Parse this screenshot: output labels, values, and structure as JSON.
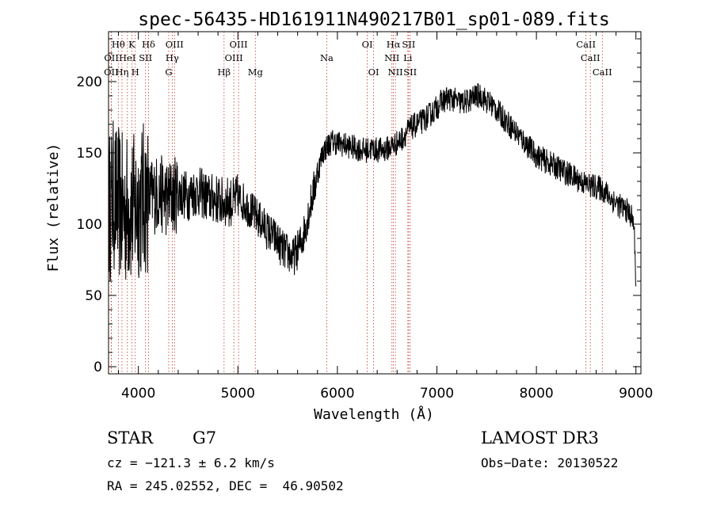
{
  "chart_data": {
    "type": "line",
    "title": "spec-56435-HD161911N490217B01_sp01-089.fits",
    "xlabel": "Wavelength (Å)",
    "ylabel": "Flux (relative)",
    "xlim": [
      3700,
      9050
    ],
    "ylim": [
      -5,
      235
    ],
    "xticks": [
      4000,
      5000,
      6000,
      7000,
      8000,
      9000
    ],
    "yticks": [
      0,
      50,
      100,
      150,
      200
    ],
    "xtick_labels": [
      "4000",
      "5000",
      "6000",
      "7000",
      "8000",
      "9000"
    ],
    "ytick_labels": [
      "0",
      "50",
      "100",
      "150",
      "200"
    ],
    "spectrum_points": [
      [
        3700,
        110
      ],
      [
        3750,
        120
      ],
      [
        3800,
        115
      ],
      [
        3850,
        108
      ],
      [
        3900,
        112
      ],
      [
        3950,
        110
      ],
      [
        4000,
        115
      ],
      [
        4050,
        118
      ],
      [
        4100,
        118
      ],
      [
        4150,
        120
      ],
      [
        4200,
        122
      ],
      [
        4250,
        120
      ],
      [
        4300,
        118
      ],
      [
        4350,
        120
      ],
      [
        4400,
        122
      ],
      [
        4450,
        121
      ],
      [
        4500,
        120
      ],
      [
        4550,
        122
      ],
      [
        4600,
        123
      ],
      [
        4650,
        121
      ],
      [
        4700,
        118
      ],
      [
        4750,
        118
      ],
      [
        4800,
        117
      ],
      [
        4850,
        115
      ],
      [
        4900,
        116
      ],
      [
        4950,
        115
      ],
      [
        5000,
        118
      ],
      [
        5050,
        116
      ],
      [
        5100,
        112
      ],
      [
        5150,
        108
      ],
      [
        5200,
        104
      ],
      [
        5250,
        100
      ],
      [
        5300,
        95
      ],
      [
        5350,
        92
      ],
      [
        5400,
        88
      ],
      [
        5450,
        82
      ],
      [
        5500,
        80
      ],
      [
        5550,
        76
      ],
      [
        5600,
        82
      ],
      [
        5650,
        90
      ],
      [
        5700,
        105
      ],
      [
        5750,
        120
      ],
      [
        5800,
        135
      ],
      [
        5850,
        150
      ],
      [
        5900,
        155
      ],
      [
        5950,
        158
      ],
      [
        6000,
        157
      ],
      [
        6050,
        156
      ],
      [
        6100,
        155
      ],
      [
        6150,
        154
      ],
      [
        6200,
        153
      ],
      [
        6250,
        152
      ],
      [
        6300,
        152
      ],
      [
        6350,
        153
      ],
      [
        6400,
        152
      ],
      [
        6450,
        152
      ],
      [
        6500,
        153
      ],
      [
        6550,
        155
      ],
      [
        6600,
        157
      ],
      [
        6650,
        160
      ],
      [
        6700,
        165
      ],
      [
        6750,
        168
      ],
      [
        6800,
        170
      ],
      [
        6850,
        172
      ],
      [
        6900,
        175
      ],
      [
        6950,
        178
      ],
      [
        7000,
        182
      ],
      [
        7050,
        186
      ],
      [
        7100,
        188
      ],
      [
        7150,
        188
      ],
      [
        7200,
        186
      ],
      [
        7250,
        185
      ],
      [
        7300,
        186
      ],
      [
        7350,
        188
      ],
      [
        7400,
        190
      ],
      [
        7450,
        190
      ],
      [
        7500,
        186
      ],
      [
        7550,
        184
      ],
      [
        7600,
        180
      ],
      [
        7650,
        176
      ],
      [
        7700,
        172
      ],
      [
        7750,
        168
      ],
      [
        7800,
        164
      ],
      [
        7850,
        160
      ],
      [
        7900,
        156
      ],
      [
        7950,
        152
      ],
      [
        8000,
        148
      ],
      [
        8050,
        146
      ],
      [
        8100,
        144
      ],
      [
        8150,
        142
      ],
      [
        8200,
        140
      ],
      [
        8250,
        138
      ],
      [
        8300,
        136
      ],
      [
        8350,
        134
      ],
      [
        8400,
        132
      ],
      [
        8450,
        130
      ],
      [
        8500,
        128
      ],
      [
        8550,
        127
      ],
      [
        8600,
        126
      ],
      [
        8650,
        125
      ],
      [
        8700,
        122
      ],
      [
        8750,
        118
      ],
      [
        8800,
        115
      ],
      [
        8850,
        112
      ],
      [
        8900,
        110
      ],
      [
        8950,
        106
      ],
      [
        8980,
        100
      ],
      [
        9000,
        60
      ]
    ],
    "lines": [
      {
        "label": "OII",
        "wave": 3727,
        "row": 2
      },
      {
        "label": "OII",
        "wave": 3729,
        "row": 1
      },
      {
        "label": "Hθ",
        "wave": 3798,
        "row": 0
      },
      {
        "label": "Hη",
        "wave": 3835,
        "row": 2
      },
      {
        "label": "K",
        "wave": 3934,
        "row": 0
      },
      {
        "label": "HeI",
        "wave": 3889,
        "row": 1
      },
      {
        "label": "H",
        "wave": 3969,
        "row": 2
      },
      {
        "label": "SII",
        "wave": 4072,
        "row": 1
      },
      {
        "label": "Hδ",
        "wave": 4102,
        "row": 0
      },
      {
        "label": "G",
        "wave": 4305,
        "row": 2
      },
      {
        "label": "OIII",
        "wave": 4363,
        "row": 0
      },
      {
        "label": "Hγ",
        "wave": 4340,
        "row": 1
      },
      {
        "label": "Hβ",
        "wave": 4861,
        "row": 2
      },
      {
        "label": "OIII",
        "wave": 4959,
        "row": 1
      },
      {
        "label": "OIII",
        "wave": 5007,
        "row": 0
      },
      {
        "label": "Mg",
        "wave": 5175,
        "row": 2
      },
      {
        "label": "Na",
        "wave": 5893,
        "row": 1
      },
      {
        "label": "OI",
        "wave": 6300,
        "row": 0
      },
      {
        "label": "OI",
        "wave": 6364,
        "row": 2
      },
      {
        "label": "NII",
        "wave": 6548,
        "row": 1
      },
      {
        "label": "Hα",
        "wave": 6563,
        "row": 0
      },
      {
        "label": "NII",
        "wave": 6583,
        "row": 2
      },
      {
        "label": "SII",
        "wave": 6716,
        "row": 0
      },
      {
        "label": "Li",
        "wave": 6708,
        "row": 1
      },
      {
        "label": "SII",
        "wave": 6731,
        "row": 2
      },
      {
        "label": "CaII",
        "wave": 8498,
        "row": 0
      },
      {
        "label": "CaII",
        "wave": 8542,
        "row": 1
      },
      {
        "label": "CaII",
        "wave": 8662,
        "row": 2
      }
    ]
  },
  "info": {
    "object_class": "STAR",
    "subclass": "G7",
    "survey": "LAMOST DR3",
    "cz": "cz = −121.3 ± 6.2 km/s",
    "obs_date": "Obs−Date: 20130522",
    "radec": "RA = 245.02552, DEC =  46.90502"
  },
  "colors": {
    "line_marker": "#c0392b",
    "spectrum": "#000000"
  }
}
